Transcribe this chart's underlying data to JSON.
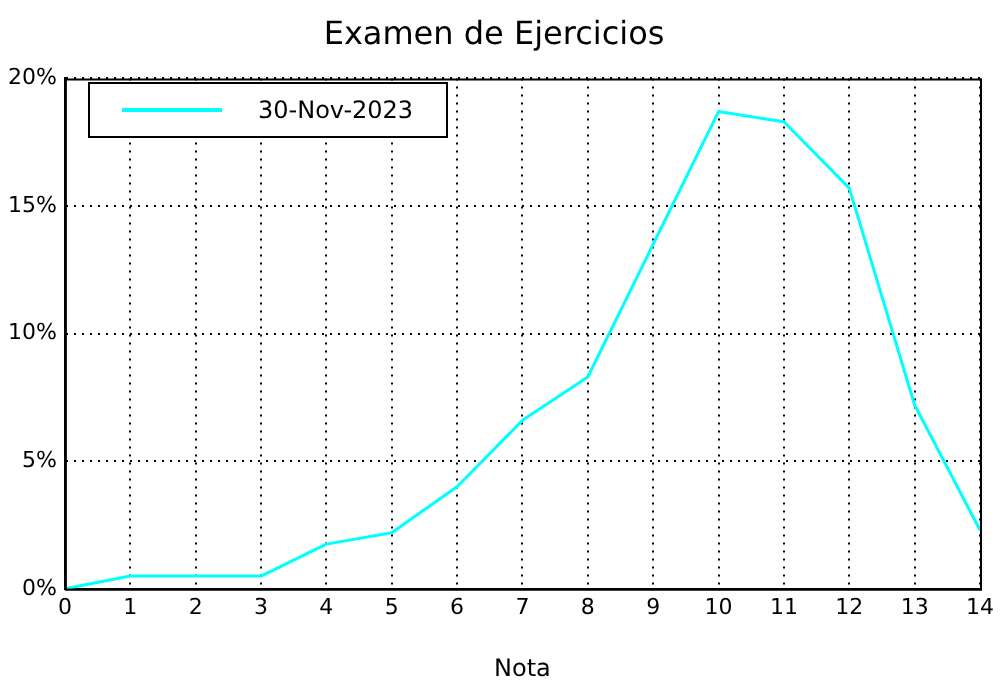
{
  "chart_data": {
    "type": "line",
    "title": "Examen de Ejercicios",
    "xlabel": "Nota",
    "x": [
      0,
      1,
      2,
      3,
      4,
      5,
      6,
      7,
      8,
      9,
      10,
      11,
      12,
      13,
      14
    ],
    "series": [
      {
        "name": "30-Nov-2023",
        "color": "#00ffff",
        "values": [
          0,
          0.5,
          0.5,
          0.5,
          1.75,
          2.2,
          4.0,
          6.6,
          8.3,
          13.5,
          18.7,
          18.3,
          15.7,
          7.2,
          2.3
        ]
      }
    ],
    "xlim": [
      0,
      14
    ],
    "xticks": [
      0,
      1,
      2,
      3,
      4,
      5,
      6,
      7,
      8,
      9,
      10,
      11,
      12,
      13,
      14
    ],
    "ylim": [
      0,
      20
    ],
    "yticks": [
      {
        "value": 0,
        "label": "0%"
      },
      {
        "value": 5,
        "label": "5%"
      },
      {
        "value": 10,
        "label": "10%"
      },
      {
        "value": 15,
        "label": "15%"
      },
      {
        "value": 20,
        "label": "20%"
      }
    ],
    "grid": true,
    "legend": "top left",
    "marker": "none",
    "line_style": "solid"
  }
}
